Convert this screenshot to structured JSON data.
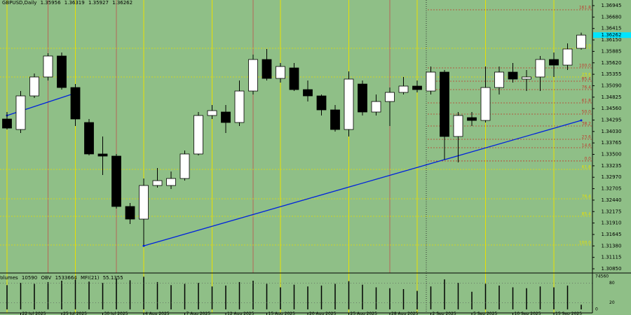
{
  "chart_data": {
    "type": "candlestick",
    "title": "GBPUSD,Daily",
    "categories": [
      null,
      "22 Jul 2025",
      null,
      null,
      "25 Jul 2025",
      null,
      null,
      "30 Jul 2025",
      null,
      null,
      "4 Aug 2025",
      null,
      null,
      "7 Aug 2025",
      null,
      null,
      "12 Aug 2025",
      null,
      null,
      "15 Aug 2025",
      null,
      null,
      "20 Aug 2025",
      null,
      null,
      "25 Aug 2025",
      null,
      null,
      "28 Aug 2025",
      null,
      null,
      "2 Sep 2025",
      null,
      null,
      "5 Sep 2025",
      null,
      null,
      "10 Sep 2025",
      null,
      null,
      "15 Sep 2025",
      null,
      null
    ],
    "open": [
      1.34319,
      1.34076,
      1.34854,
      1.35292,
      1.35778,
      1.35048,
      1.34238,
      1.33509,
      1.3346,
      1.32293,
      1.32001,
      1.32779,
      1.32779,
      1.32941,
      1.33509,
      1.344,
      1.34481,
      1.34238,
      1.34967,
      1.35697,
      1.35259,
      1.35502,
      1.35,
      1.34854,
      1.3453,
      1.34076,
      1.35129,
      1.34481,
      1.34724,
      1.34935,
      1.35081,
      1.34967,
      1.35405,
      1.33914,
      1.34351,
      1.34286,
      1.35048,
      1.35405,
      1.35243,
      1.35292,
      1.35697,
      1.35567,
      1.35956
    ],
    "high": [
      1.34481,
      1.34967,
      1.35373,
      1.35843,
      1.35859,
      1.35129,
      1.34319,
      1.33914,
      1.33509,
      1.32374,
      1.32941,
      1.33184,
      1.33103,
      1.3359,
      1.34481,
      1.34643,
      1.34643,
      1.35211,
      1.3581,
      1.3594,
      1.35616,
      1.35616,
      1.35211,
      1.34886,
      1.34643,
      1.35421,
      1.35211,
      1.34886,
      1.35048,
      1.35292,
      1.35211,
      1.35535,
      1.35454,
      1.34481,
      1.34481,
      1.35535,
      1.35535,
      1.35616,
      1.35454,
      1.35778,
      1.35859,
      1.3607,
      1.36319
    ],
    "low": [
      1.34076,
      1.33995,
      1.34805,
      1.35211,
      1.35,
      1.34157,
      1.33476,
      1.33022,
      1.32244,
      1.31888,
      1.31401,
      1.3273,
      1.32698,
      1.32892,
      1.33476,
      1.34319,
      1.33995,
      1.34157,
      1.34886,
      1.35211,
      1.35162,
      1.34967,
      1.34724,
      1.344,
      1.34027,
      1.33914,
      1.344,
      1.344,
      1.34157,
      1.34886,
      1.34935,
      1.34886,
      1.33379,
      1.33314,
      1.34157,
      1.34238,
      1.34886,
      1.35162,
      1.34967,
      1.34967,
      1.35292,
      1.35454,
      1.35927
    ],
    "close": [
      1.34108,
      1.34854,
      1.35292,
      1.35778,
      1.35048,
      1.34319,
      1.33509,
      1.3346,
      1.32293,
      1.32001,
      1.32779,
      1.32892,
      1.32941,
      1.33509,
      1.344,
      1.34513,
      1.34238,
      1.34967,
      1.35697,
      1.35259,
      1.35535,
      1.35,
      1.34854,
      1.3453,
      1.34076,
      1.35243,
      1.34481,
      1.34724,
      1.34935,
      1.35081,
      1.35,
      1.35405,
      1.33914,
      1.344,
      1.34286,
      1.35048,
      1.35405,
      1.35243,
      1.35292,
      1.35697,
      1.35567,
      1.3594,
      1.36262
    ],
    "ylim": [
      1.30785,
      1.37075
    ],
    "yticks": [
      1.36945,
      {
        "value": 1.3668,
        "label": "1.36680"
      },
      1.36415,
      {
        "value": 1.3615,
        "label": "1.36150"
      },
      1.35885,
      {
        "value": 1.3562,
        "label": "1.35620"
      },
      1.35355,
      {
        "value": 1.3509,
        "label": "1.35090"
      },
      1.34825,
      {
        "value": 1.3456,
        "label": "1.34560"
      },
      1.34295,
      {
        "value": 1.3403,
        "label": "1.34030"
      },
      1.33765,
      {
        "value": 1.335,
        "label": "1.33500"
      },
      1.33235,
      {
        "value": 1.3297,
        "label": "1.32970"
      },
      1.32705,
      {
        "value": 1.3244,
        "label": "1.32440"
      },
      1.32175,
      {
        "value": 1.3191,
        "label": "1.31910"
      },
      1.31645,
      {
        "value": 1.3138,
        "label": "1.31380"
      },
      1.31115,
      {
        "value": 1.3085,
        "label": "1.30850"
      }
    ],
    "up_color": "#ffffff",
    "down_color": "#000000",
    "background": "#8fbf87",
    "fib_levels": [
      {
        "label": "161.8",
        "value": 1.36848,
        "color": "#c0392b"
      },
      {
        "label": "0.0",
        "value": 1.35956,
        "color": "#e8e000"
      },
      {
        "label": "100.0",
        "value": 1.35502,
        "color": "#c0392b"
      },
      {
        "label": "23.6",
        "value": 1.35292,
        "color": "#e8e000"
      },
      {
        "label": "85.4",
        "value": 1.35194,
        "color": "#c0392b"
      },
      {
        "label": "76.4",
        "value": 1.35,
        "color": "#c0392b"
      },
      {
        "label": "61.8",
        "value": 1.34692,
        "color": "#c0392b"
      },
      {
        "label": "50.0",
        "value": 1.34432,
        "color": "#c0392b"
      },
      {
        "label": "38.2",
        "value": 1.34157,
        "color": "#c0392b"
      },
      {
        "label": "23.6",
        "value": 1.33849,
        "color": "#c0392b"
      },
      {
        "label": "14.6",
        "value": 1.33654,
        "color": "#c0392b"
      },
      {
        "label": "0.0",
        "value": 1.33347,
        "color": "#c0392b"
      },
      {
        "label": "61.8",
        "value": 1.33152,
        "color": "#e8e000"
      },
      {
        "label": "76.4",
        "value": 1.32471,
        "color": "#e8e000"
      },
      {
        "label": "85.4",
        "value": 1.32066,
        "color": "#e8e000"
      },
      {
        "label": "100.0",
        "value": 1.31401,
        "color": "#e8e000"
      }
    ],
    "trendlines": [
      {
        "start": [
          10,
          1.3138
        ],
        "end": [
          42,
          1.34286
        ],
        "color": "#0022dd"
      },
      {
        "start": [
          0,
          1.344
        ],
        "end": [
          5,
          1.34919
        ],
        "color": "#0022dd"
      }
    ],
    "volume_panel": {
      "name": "Volumes",
      "obv_name": "OBV",
      "obv": 1533664,
      "mfi_name": "MFI(21)",
      "mfi": 55.1355,
      "volumes": [
        55000,
        60000,
        58000,
        62000,
        65000,
        68000,
        63000,
        60000,
        70000,
        66000,
        74000,
        62000,
        55000,
        58000,
        60000,
        52000,
        54000,
        62000,
        65000,
        58000,
        50000,
        56000,
        52000,
        54000,
        58000,
        64000,
        56000,
        50000,
        48000,
        46000,
        42000,
        52000,
        68000,
        60000,
        40000,
        58000,
        54000,
        50000,
        48000,
        52000,
        50000,
        54000,
        10590
      ],
      "ylim": [
        0,
        74560
      ],
      "yticks": [
        0,
        74560
      ],
      "mfi_ylim": [
        0,
        100
      ],
      "mfi_ticks": [
        20,
        80
      ]
    }
  }
}
